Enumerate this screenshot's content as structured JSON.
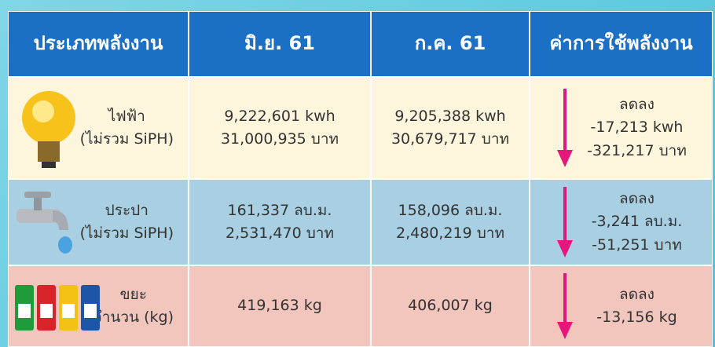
{
  "header": [
    "ประเภทพลังงาน",
    "มิ.ย. 61",
    "ก.ค. 61",
    "ค่าการใช้พลังงาน"
  ],
  "rows": [
    {
      "label": [
        "ไฟฟ้า",
        "(ไม่รวม SiPH)"
      ],
      "jun": [
        "9,222,601 kwh",
        "31,000,935 บาท"
      ],
      "jul": [
        "9,205,388 kwh",
        "30,679,717 บาท"
      ],
      "change": [
        "ลดลง",
        "-17,213 kwh",
        "-321,217 บาท"
      ]
    },
    {
      "label": [
        "ประปา",
        "(ไม่รวม SiPH)"
      ],
      "jun": [
        "161,337 ลบ.ม.",
        "2,531,470 บาท"
      ],
      "jul": [
        "158,096 ลบ.ม.",
        "2,480,219 บาท"
      ],
      "change": [
        "ลดลง",
        "-3,241 ลบ.ม.",
        "-51,251 บาท"
      ]
    },
    {
      "label": [
        "ขยะ",
        "จำนวน (kg)"
      ],
      "jun": [
        "419,163 kg"
      ],
      "jul": [
        "406,007 kg"
      ],
      "change": [
        "ลดลง",
        "-13,156 kg"
      ]
    }
  ]
}
